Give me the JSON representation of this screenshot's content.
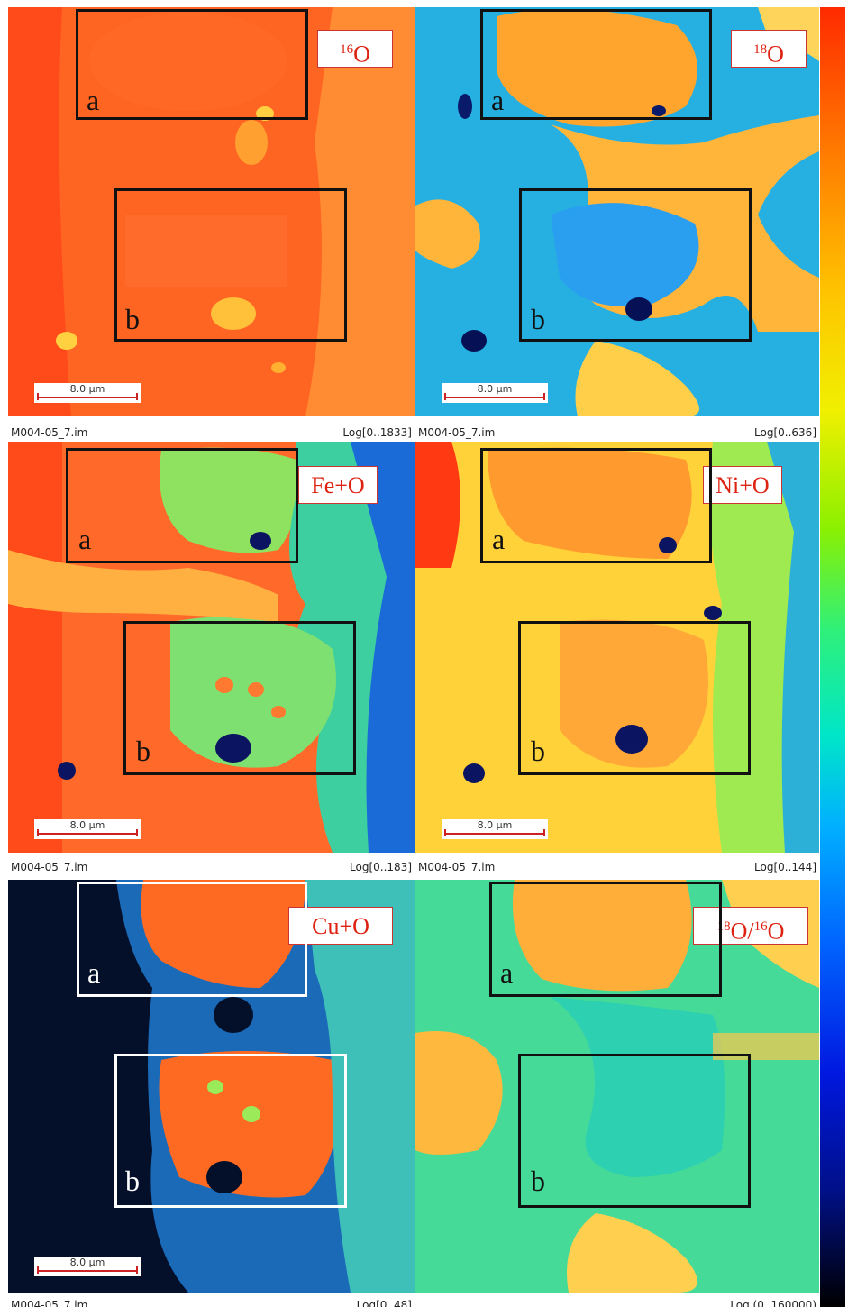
{
  "header_text": {
    "prefix": "",
    "link": ""
  },
  "scale_bar": "8.0 µm",
  "panels": [
    {
      "label_main": "O",
      "label_sup": "16",
      "label_html": "<sup>16</sup>O",
      "file": "M004-05_7.im",
      "range": "Log[0..1833]",
      "roi_a": "a",
      "roi_b": "b",
      "theme": "red"
    },
    {
      "label_main": "O",
      "label_sup": "18",
      "label_html": "<sup>18</sup>O",
      "file": "M004-05_7.im",
      "range": "Log[0..636]",
      "roi_a": "a",
      "roi_b": "b",
      "theme": "blue"
    },
    {
      "label_html": "Fe+O",
      "file": "M004-05_7.im",
      "range": "Log[0..183]",
      "roi_a": "a",
      "roi_b": "b",
      "theme": "fe"
    },
    {
      "label_html": "Ni+O",
      "file": "M004-05_7.im",
      "range": "Log[0..144]",
      "roi_a": "a",
      "roi_b": "b",
      "theme": "ni"
    },
    {
      "label_html": "Cu+O",
      "file": "M004-05_7.im",
      "range": "Log[0..48]",
      "roi_a": "a",
      "roi_b": "b",
      "theme": "cu"
    },
    {
      "label_html": "<sup>18</sup>O/<sup>16</sup>O",
      "file": "",
      "range": "Log (0..160000)",
      "roi_a": "a",
      "roi_b": "b",
      "theme": "ratio"
    }
  ],
  "colorbar": {
    "top_color": "#ff2a00",
    "bottom_color": "#000000"
  }
}
